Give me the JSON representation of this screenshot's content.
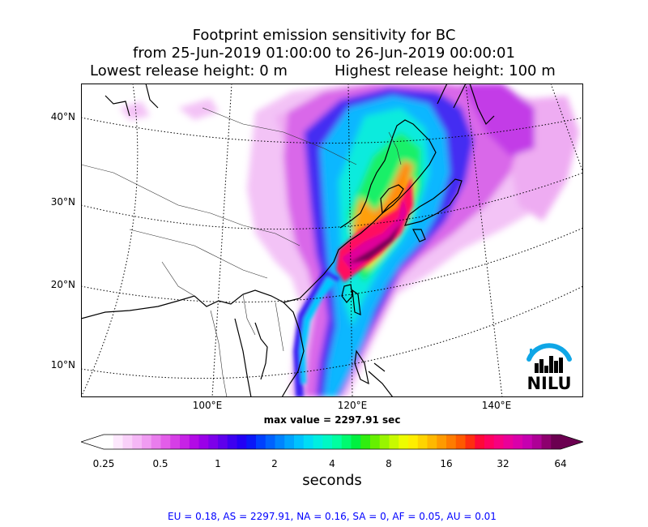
{
  "title": {
    "line1": "Footprint emission sensitivity for BC",
    "line2": "from 25-Jun-2019 01:00:00 to 26-Jun-2019 00:00:01",
    "lowest": "Lowest release height: 0 m",
    "highest": "Highest release height: 100 m"
  },
  "map": {
    "lat_labels": [
      "40°N",
      "30°N",
      "20°N",
      "10°N"
    ],
    "lon_labels": [
      "100°E",
      "120°E",
      "140°E"
    ],
    "max_value": "max value = 2297.91 sec",
    "logo": "NILU"
  },
  "colorbar": {
    "ticks": [
      "0.25",
      "0.5",
      "1",
      "2",
      "4",
      "8",
      "16",
      "32",
      "64"
    ],
    "units": "seconds",
    "colors": [
      "#ffffff",
      "#fde8fd",
      "#f9d0f9",
      "#f5b7f6",
      "#f09cf2",
      "#e97ded",
      "#e35de9",
      "#d63ee6",
      "#c722e6",
      "#b30ae6",
      "#9a00e8",
      "#7d00ea",
      "#5e00ec",
      "#3d00f0",
      "#2200f5",
      "#0a18f8",
      "#0040ff",
      "#0062ff",
      "#0084ff",
      "#00a4ff",
      "#00c2ff",
      "#00dcf5",
      "#00eee0",
      "#00f8c4",
      "#00ffa0",
      "#00fa70",
      "#00f040",
      "#30ee10",
      "#66f000",
      "#99f500",
      "#c8fa00",
      "#eefc00",
      "#ffee00",
      "#ffd400",
      "#ffb800",
      "#ff9a00",
      "#ff7c00",
      "#ff5a00",
      "#ff2e10",
      "#ff0838",
      "#ff0060",
      "#f70080",
      "#ea0099",
      "#da00aa",
      "#c600b0",
      "#ae0096",
      "#8d006e",
      "#6b0050"
    ]
  },
  "regions_text": "EU = 0.18,  AS = 2297.91,  NA = 0.16,  SA = 0,  AF = 0.05,  AU = 0.01"
}
